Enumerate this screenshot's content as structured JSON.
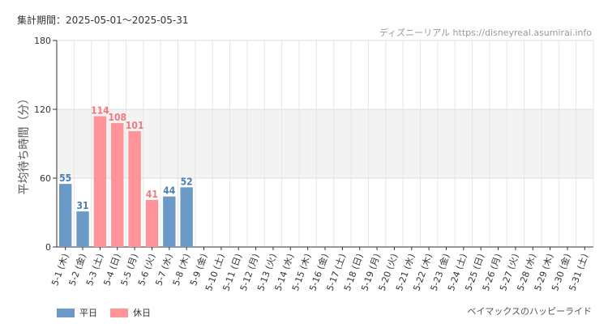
{
  "header": {
    "period": "集計期間：2025-05-01～2025-05-31",
    "source": "ディズニーリアル https://disneyreal.asumirai.info"
  },
  "footer": {
    "subject": "ベイマックスのハッピーライド"
  },
  "colors": {
    "weekday": "#6b9ac9",
    "holiday": "#ff9397",
    "weekday_text": "#4a7fb5",
    "holiday_text": "#f07a80",
    "band": "#f3f3f3",
    "grid": "#e6e6e6"
  },
  "chart_data": {
    "type": "bar",
    "ylabel": "平均待ち時間（分）",
    "ylim": [
      0,
      180
    ],
    "yticks": [
      0,
      60,
      120,
      180
    ],
    "shaded_band": [
      60,
      120
    ],
    "legend": [
      {
        "key": "weekday",
        "label": "平日"
      },
      {
        "key": "holiday",
        "label": "休日"
      }
    ],
    "categories": [
      "5-1 (木)",
      "5-2 (金)",
      "5-3 (土)",
      "5-4 (日)",
      "5-5 (月)",
      "5-6 (火)",
      "5-7 (水)",
      "5-8 (木)",
      "5-9 (金)",
      "5-10 (土)",
      "5-11 (日)",
      "5-12 (月)",
      "5-13 (火)",
      "5-14 (水)",
      "5-15 (木)",
      "5-16 (金)",
      "5-17 (土)",
      "5-18 (日)",
      "5-19 (月)",
      "5-20 (火)",
      "5-21 (水)",
      "5-22 (木)",
      "5-23 (金)",
      "5-24 (土)",
      "5-25 (日)",
      "5-26 (月)",
      "5-27 (火)",
      "5-28 (水)",
      "5-29 (木)",
      "5-30 (金)",
      "5-31 (土)"
    ],
    "day_type": [
      "weekday",
      "weekday",
      "holiday",
      "holiday",
      "holiday",
      "holiday",
      "weekday",
      "weekday",
      "weekday",
      "holiday",
      "holiday",
      "weekday",
      "weekday",
      "weekday",
      "weekday",
      "weekday",
      "holiday",
      "holiday",
      "weekday",
      "weekday",
      "weekday",
      "weekday",
      "weekday",
      "holiday",
      "holiday",
      "weekday",
      "weekday",
      "weekday",
      "weekday",
      "weekday",
      "holiday"
    ],
    "values": [
      55,
      31,
      114,
      108,
      101,
      41,
      44,
      52,
      null,
      null,
      null,
      null,
      null,
      null,
      null,
      null,
      null,
      null,
      null,
      null,
      null,
      null,
      null,
      null,
      null,
      null,
      null,
      null,
      null,
      null,
      null
    ]
  }
}
